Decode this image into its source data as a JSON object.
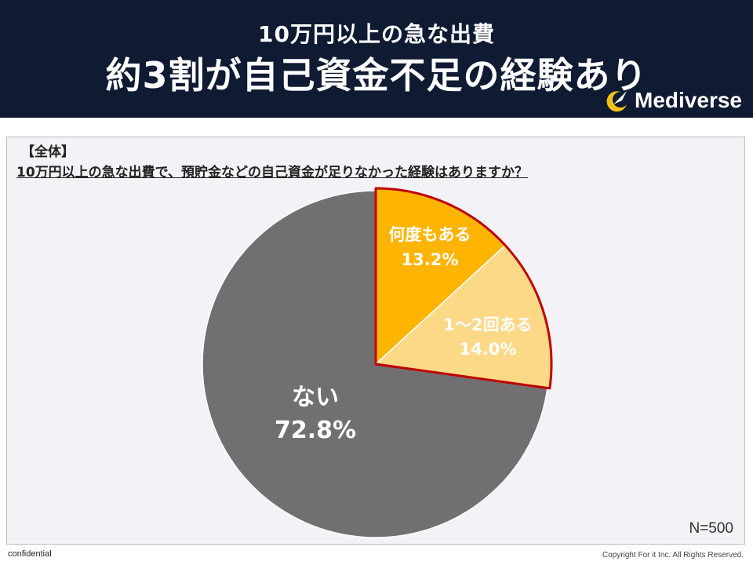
{
  "header": {
    "title_line1": "10万円以上の急な出費",
    "title_line2": "約3割が自己資金不足の経験あり",
    "logo_text": "Mediverse",
    "logo_icon": "logo-moon-icon"
  },
  "panel": {
    "segment_label": "【全体】",
    "question": "10万円以上の急な出費で、預貯金などの自己資金が足りなかった経験はありますか？",
    "n_label": "N=500"
  },
  "chart_data": {
    "type": "pie",
    "slices": [
      {
        "label": "何度もある",
        "value": 13.2,
        "value_label": "13.2%",
        "color": "#ffb400"
      },
      {
        "label": "1～2回ある",
        "value": 14.0,
        "value_label": "14.0%",
        "color": "#fcd987"
      },
      {
        "label": "ない",
        "value": 72.8,
        "value_label": "72.8%",
        "color": "#726f72"
      }
    ],
    "highlight_stroke": "#c00000"
  },
  "footer": {
    "left": "confidential",
    "right": "Copyright For it Inc. All Rights Reserved."
  }
}
